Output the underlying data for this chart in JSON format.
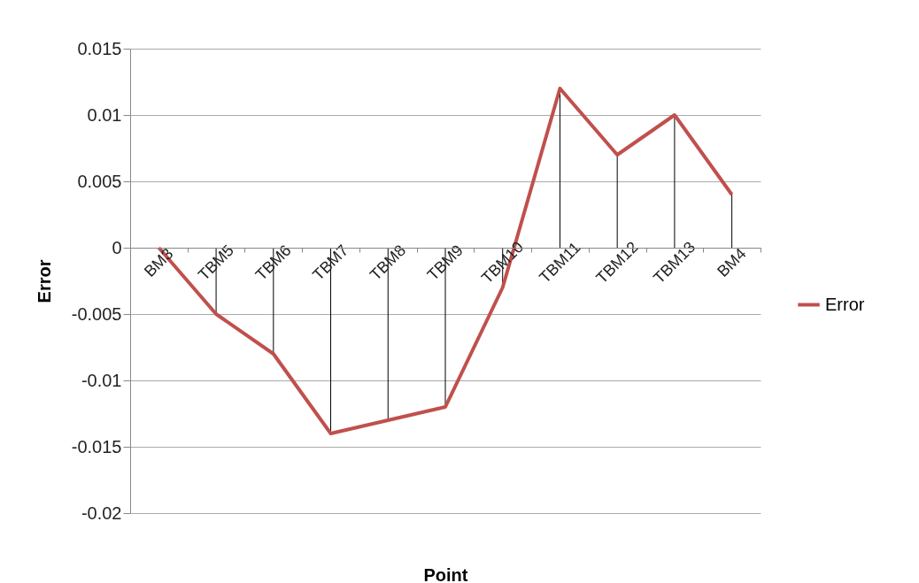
{
  "chart_data": {
    "type": "line",
    "xlabel": "Point",
    "ylabel": "Error",
    "categories": [
      "BM3",
      "TBM5",
      "TBM6",
      "TBM7",
      "TBM8",
      "TBM9",
      "TBM10",
      "TBM11",
      "TBM12",
      "TBM13",
      "BM4"
    ],
    "series": [
      {
        "name": "Error",
        "color": "#c0504d",
        "values": [
          0,
          -0.005,
          -0.008,
          -0.014,
          -0.013,
          -0.012,
          -0.003,
          0.012,
          0.007,
          0.01,
          0.004
        ],
        "errors": [
          null,
          [
            -0.005,
            0
          ],
          [
            -0.008,
            0
          ],
          [
            -0.014,
            0
          ],
          [
            -0.013,
            0
          ],
          [
            -0.012,
            0
          ],
          [
            -0.003,
            0
          ],
          [
            0,
            0.012
          ],
          [
            0,
            0.007
          ],
          [
            0,
            0.01
          ],
          [
            0,
            0.004
          ]
        ]
      }
    ],
    "ylim": [
      -0.02,
      0.015
    ],
    "yticks": [
      -0.02,
      -0.015,
      -0.01,
      -0.005,
      0,
      0.005,
      0.01,
      0.015
    ],
    "grid": "y",
    "legend": "right",
    "marker": "none",
    "line_style": "solid"
  }
}
